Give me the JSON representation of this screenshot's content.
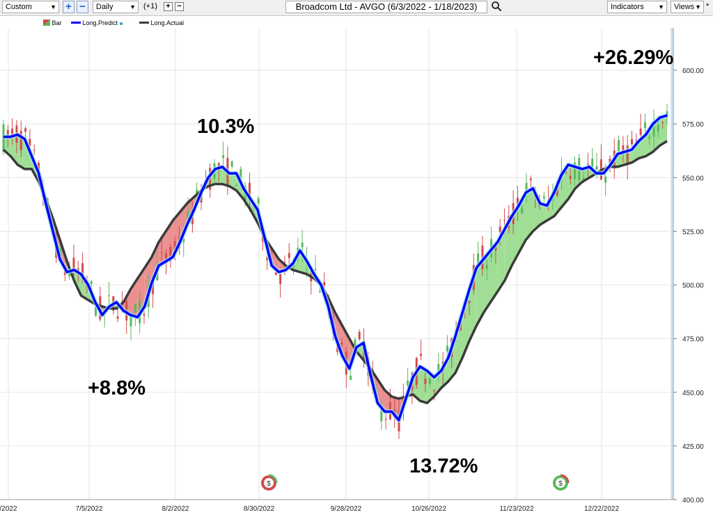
{
  "toolbar": {
    "range_select": "Custom",
    "period_select": "Daily",
    "offset_label": "(+1)",
    "plus_symbol": "+",
    "minus_symbol": "−",
    "small_plus": "+",
    "small_minus": "−",
    "title": "Broadcom Ltd - AVGO (6/3/2022 - 1/18/2023)",
    "indicators_label": "Indicators",
    "views_label": "Views",
    "caret": "▼",
    "views_star": "*"
  },
  "legend": [
    {
      "label": "Bar",
      "icon": "bar-icon"
    },
    {
      "label": "Long.Predict",
      "color": "#0000ff"
    },
    {
      "label": "Long.Actual",
      "color": "#3a3a3a"
    }
  ],
  "annotations": {
    "a1": "+8.8%",
    "a2": "10.3%",
    "a3": "13.72%",
    "a4": "+26.29%"
  },
  "chart_data": {
    "type": "line",
    "ylim": [
      400,
      610
    ],
    "y_ticks": [
      "400.00",
      "425.00",
      "450.00",
      "475.00",
      "500.00",
      "525.00",
      "550.00",
      "575.00",
      "600.00"
    ],
    "x_labels": [
      "/2022",
      "7/5/2022",
      "8/2/2022",
      "8/30/2022",
      "9/28/2022",
      "10/26/2022",
      "11/23/2022",
      "12/22/2022"
    ],
    "colors": {
      "up": "#5cb85c",
      "down": "#d14b4b",
      "predict": "#0000ff",
      "actual": "#3a3a3a",
      "fill_up": "#9fde94",
      "fill_down": "#ea9090"
    },
    "series": [
      {
        "name": "Long.Predict",
        "values": [
          569,
          569,
          570,
          568,
          560,
          552,
          538,
          525,
          512,
          506,
          507,
          505,
          500,
          492,
          486,
          490,
          492,
          488,
          486,
          485,
          490,
          501,
          509,
          511,
          513,
          520,
          528,
          535,
          543,
          550,
          554,
          555,
          552,
          552,
          545,
          540,
          535,
          522,
          509,
          506,
          507,
          510,
          516,
          511,
          505,
          500,
          490,
          476,
          467,
          461,
          471,
          473,
          458,
          445,
          441,
          441,
          437,
          447,
          457,
          462,
          460,
          457,
          460,
          466,
          476,
          487,
          498,
          508,
          512,
          516,
          520,
          526,
          532,
          537,
          543,
          545,
          538,
          537,
          543,
          551,
          556,
          555,
          554,
          555,
          552,
          552,
          556,
          561,
          562,
          563,
          567,
          570,
          575,
          578,
          579
        ]
      },
      {
        "name": "Long.Actual",
        "values": [
          563,
          560,
          556,
          554,
          554,
          548,
          540,
          531,
          521,
          511,
          502,
          495,
          493,
          491,
          490,
          489,
          489,
          492,
          498,
          503,
          508,
          513,
          520,
          525,
          530,
          534,
          538,
          541,
          544,
          546,
          547,
          547,
          546,
          544,
          540,
          535,
          529,
          522,
          517,
          512,
          509,
          507,
          506,
          505,
          503,
          500,
          494,
          487,
          481,
          475,
          469,
          465,
          461,
          456,
          451,
          448,
          447,
          448,
          449,
          446,
          445,
          448,
          452,
          455,
          459,
          466,
          474,
          481,
          487,
          492,
          497,
          502,
          509,
          515,
          521,
          525,
          528,
          530,
          532,
          536,
          540,
          545,
          548,
          550,
          552,
          554,
          555,
          555,
          556,
          557,
          559,
          560,
          562,
          565,
          567
        ]
      }
    ]
  }
}
